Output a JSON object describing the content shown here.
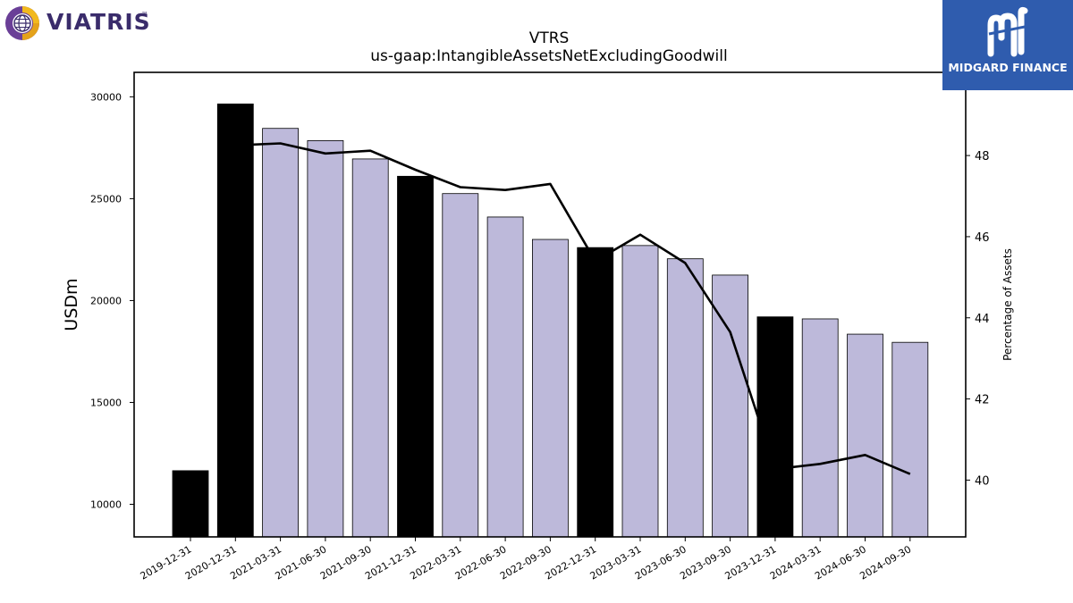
{
  "logos": {
    "left": {
      "text": "VIATRIS",
      "mark": "™",
      "icon": "globe-icon"
    },
    "right": {
      "text": "MIDGARD FINANCE",
      "icon": "midgard-m-icon",
      "bg_color": "#2f5cae"
    }
  },
  "chart_data": {
    "type": "bar",
    "title": "VTRS",
    "subtitle": "us-gaap:IntangibleAssetsNetExcludingGoodwill",
    "ylabel": "USDm",
    "y2label": "Percentage of Assets",
    "categories": [
      "2019-12-31",
      "2020-12-31",
      "2021-03-31",
      "2021-06-30",
      "2021-09-30",
      "2021-12-31",
      "2022-03-31",
      "2022-06-30",
      "2022-09-30",
      "2022-12-31",
      "2023-03-31",
      "2023-06-30",
      "2023-09-30",
      "2023-12-31",
      "2024-03-31",
      "2024-06-30",
      "2024-09-30"
    ],
    "values": [
      11650,
      29650,
      28450,
      27850,
      26950,
      26100,
      25250,
      24100,
      23000,
      22600,
      22700,
      22050,
      21250,
      19200,
      19100,
      18350,
      17950
    ],
    "bar_colors": [
      "#000000",
      "#000000",
      "#bdb9da",
      "#bdb9da",
      "#bdb9da",
      "#000000",
      "#bdb9da",
      "#bdb9da",
      "#bdb9da",
      "#000000",
      "#bdb9da",
      "#bdb9da",
      "#bdb9da",
      "#000000",
      "#bdb9da",
      "#bdb9da",
      "#bdb9da"
    ],
    "ylim": [
      8400,
      31200
    ],
    "yticks": [
      10000,
      15000,
      20000,
      25000,
      30000
    ],
    "line_series": {
      "name": "Percentage of Assets",
      "values": [
        null,
        48.25,
        48.3,
        48.05,
        48.12,
        47.65,
        47.22,
        47.15,
        47.3,
        45.4,
        46.05,
        45.35,
        43.65,
        40.27,
        40.4,
        40.62,
        40.15
      ],
      "color": "#000000"
    },
    "y2lim": [
      38.6,
      50.05
    ],
    "y2ticks": [
      40,
      42,
      44,
      46,
      48
    ],
    "grid": false,
    "legend": "none"
  }
}
